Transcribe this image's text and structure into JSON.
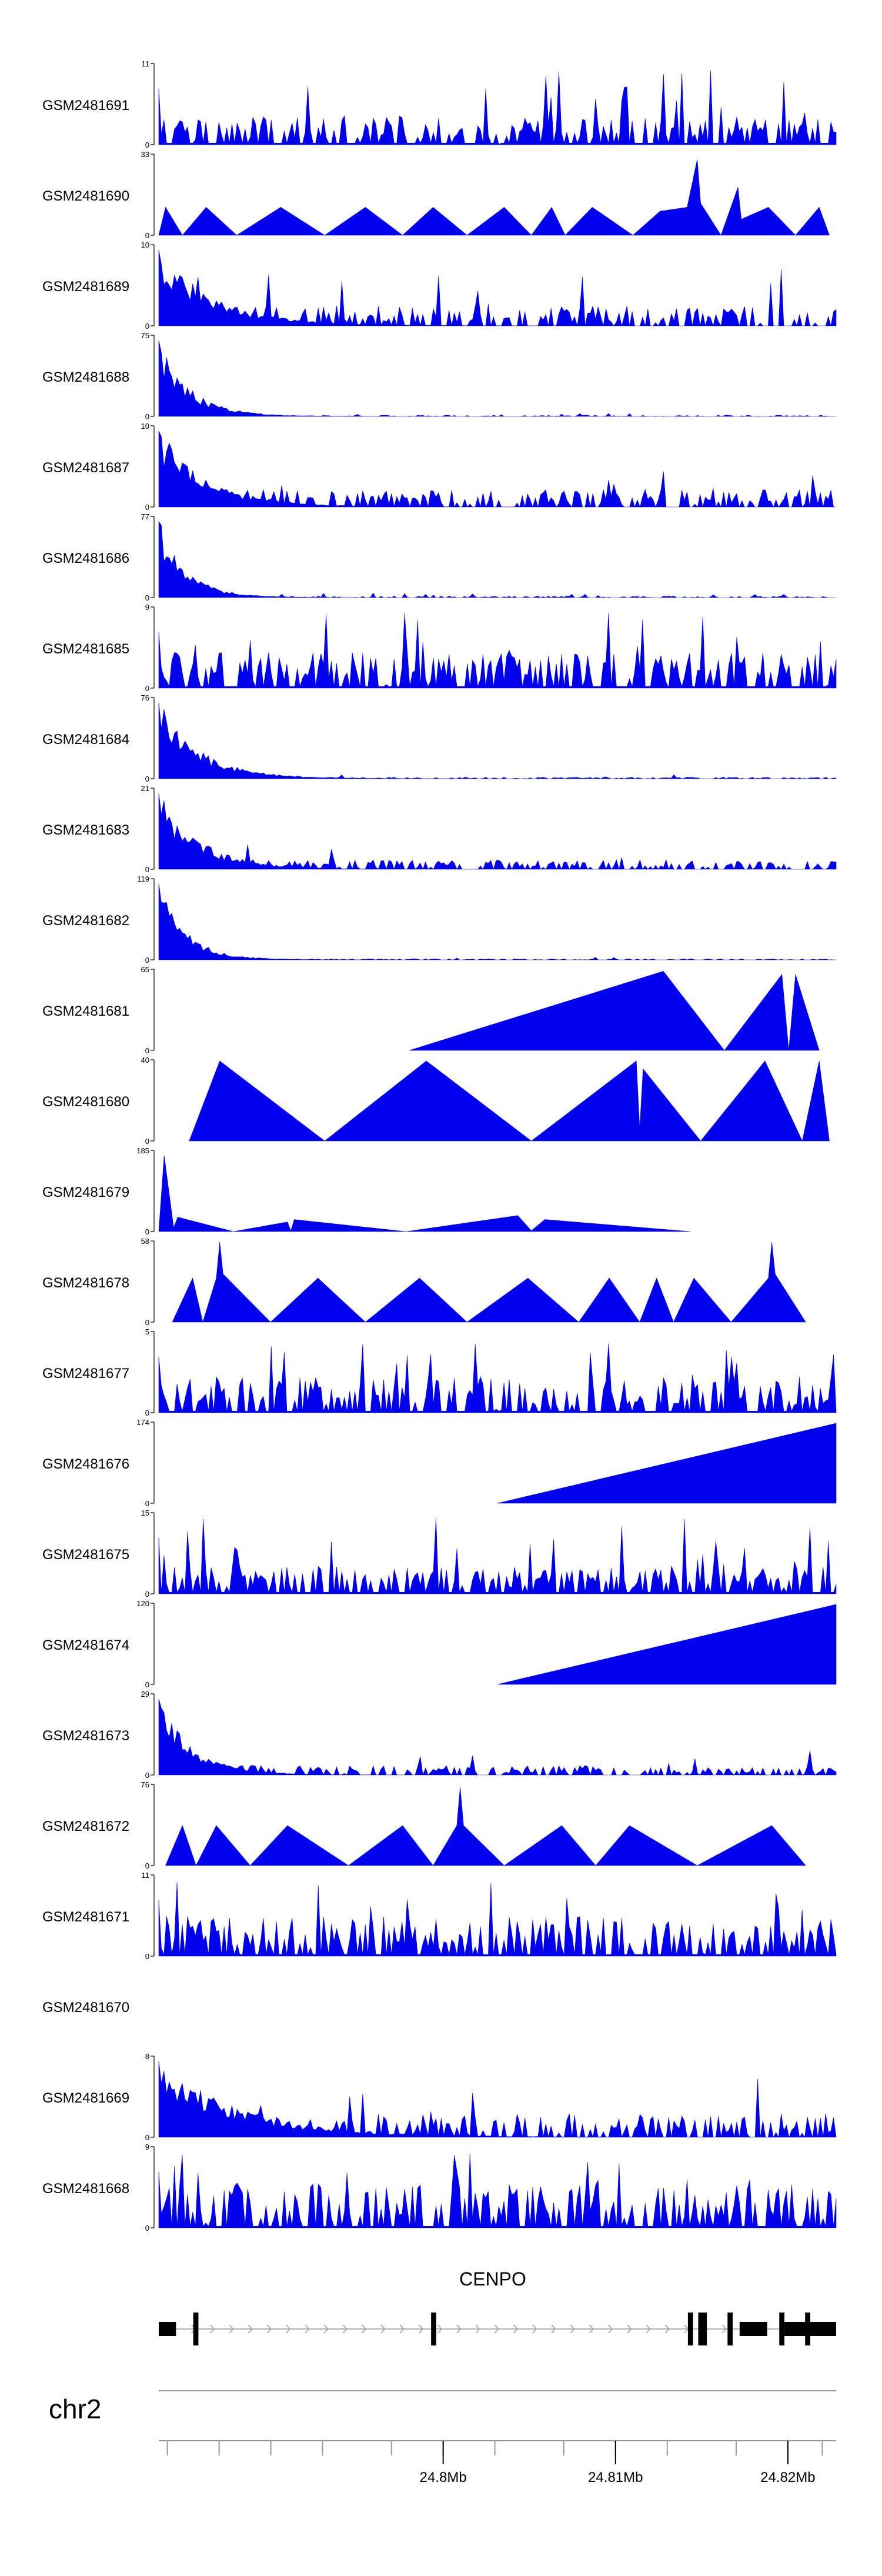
{
  "chart_data": {
    "type": "area",
    "chromosome": "chr2",
    "gene": {
      "name": "CENPO",
      "start": 24.7835,
      "end": 24.8228,
      "strand": "+",
      "exons": [
        [
          24.7835,
          24.7845
        ],
        [
          24.7855,
          24.7858
        ],
        [
          24.7993,
          24.7996
        ],
        [
          24.8142,
          24.8145
        ],
        [
          24.8148,
          24.8153
        ],
        [
          24.8165,
          24.8168
        ],
        [
          24.8172,
          24.8188
        ],
        [
          24.8195,
          24.8198
        ],
        [
          24.821,
          24.8213
        ],
        [
          24.8198,
          24.8228
        ]
      ]
    },
    "x_axis": {
      "range": [
        24.7835,
        24.8228
      ],
      "ticks": [
        24.8,
        24.81,
        24.82
      ],
      "tick_labels": [
        "24.8Mb",
        "24.81Mb",
        "24.82Mb"
      ],
      "minor_ticks": [
        24.784,
        24.787,
        24.79,
        24.793,
        24.797,
        24.8,
        24.803,
        24.807,
        24.81,
        24.813,
        24.817,
        24.82,
        24.822
      ]
    },
    "tracks": [
      {
        "name": "GSM2481691",
        "ymax": 11,
        "ytick": "11",
        "pattern": "noise",
        "seed": 11,
        "level": 0.35
      },
      {
        "name": "GSM2481690",
        "ymax": 33,
        "ytick": "33",
        "pattern": "polyline",
        "points": [
          [
            0.0,
            0
          ],
          [
            0.01,
            0.35
          ],
          [
            0.035,
            0
          ],
          [
            0.07,
            0.35
          ],
          [
            0.115,
            0
          ],
          [
            0.18,
            0.35
          ],
          [
            0.245,
            0
          ],
          [
            0.305,
            0.35
          ],
          [
            0.36,
            0
          ],
          [
            0.405,
            0.35
          ],
          [
            0.455,
            0
          ],
          [
            0.51,
            0.35
          ],
          [
            0.55,
            0
          ],
          [
            0.58,
            0.35
          ],
          [
            0.6,
            0
          ],
          [
            0.64,
            0.35
          ],
          [
            0.7,
            0
          ],
          [
            0.74,
            0.3
          ],
          [
            0.78,
            0.35
          ],
          [
            0.795,
            0.95
          ],
          [
            0.8,
            0.4
          ],
          [
            0.83,
            0
          ],
          [
            0.855,
            0.6
          ],
          [
            0.86,
            0.2
          ],
          [
            0.9,
            0.35
          ],
          [
            0.94,
            0
          ],
          [
            0.975,
            0.35
          ],
          [
            0.99,
            0
          ]
        ]
      },
      {
        "name": "GSM2481689",
        "ymax": 10,
        "ytick": "10",
        "pattern": "decay",
        "seed": 89,
        "decay": 0.08,
        "level": 0.25
      },
      {
        "name": "GSM2481688",
        "ymax": 75,
        "ytick": "75",
        "pattern": "decay",
        "seed": 88,
        "decay": 0.045,
        "level": 0.015
      },
      {
        "name": "GSM2481687",
        "ymax": 10,
        "ytick": "10",
        "pattern": "decay",
        "seed": 87,
        "decay": 0.07,
        "level": 0.22
      },
      {
        "name": "GSM2481686",
        "ymax": 77,
        "ytick": "77",
        "pattern": "decay",
        "seed": 86,
        "decay": 0.04,
        "level": 0.02
      },
      {
        "name": "GSM2481685",
        "ymax": 9,
        "ytick": "9",
        "pattern": "noise",
        "seed": 85,
        "level": 0.45
      },
      {
        "name": "GSM2481684",
        "ymax": 76,
        "ytick": "76",
        "pattern": "decay",
        "seed": 84,
        "decay": 0.06,
        "level": 0.02
      },
      {
        "name": "GSM2481683",
        "ymax": 21,
        "ytick": "21",
        "pattern": "decay",
        "seed": 83,
        "decay": 0.06,
        "level": 0.12
      },
      {
        "name": "GSM2481682",
        "ymax": 119,
        "ytick": "119",
        "pattern": "decay",
        "seed": 82,
        "decay": 0.04,
        "level": 0.012
      },
      {
        "name": "GSM2481681",
        "ymax": 65,
        "ytick": "65",
        "pattern": "polyline",
        "points": [
          [
            0.37,
            0
          ],
          [
            0.745,
            0.99
          ],
          [
            0.835,
            0
          ],
          [
            0.92,
            0.95
          ],
          [
            0.93,
            0
          ],
          [
            0.94,
            0.95
          ],
          [
            0.975,
            0
          ]
        ]
      },
      {
        "name": "GSM2481680",
        "ymax": 40,
        "ytick": "40",
        "pattern": "polyline",
        "points": [
          [
            0.045,
            0
          ],
          [
            0.09,
            1.0
          ],
          [
            0.245,
            0
          ],
          [
            0.395,
            1.0
          ],
          [
            0.55,
            0
          ],
          [
            0.705,
            1.0
          ],
          [
            0.71,
            0.15
          ],
          [
            0.715,
            0.9
          ],
          [
            0.8,
            0
          ],
          [
            0.895,
            1.0
          ],
          [
            0.95,
            0
          ],
          [
            0.975,
            1.0
          ],
          [
            0.99,
            0
          ]
        ]
      },
      {
        "name": "GSM2481679",
        "ymax": 185,
        "ytick": "185",
        "pattern": "polyline",
        "points": [
          [
            0.0,
            0
          ],
          [
            0.008,
            0.95
          ],
          [
            0.022,
            0.05
          ],
          [
            0.028,
            0.18
          ],
          [
            0.11,
            0
          ],
          [
            0.19,
            0.12
          ],
          [
            0.195,
            0.01
          ],
          [
            0.2,
            0.15
          ],
          [
            0.365,
            0
          ],
          [
            0.53,
            0.2
          ],
          [
            0.55,
            0.01
          ],
          [
            0.57,
            0.15
          ],
          [
            0.785,
            0
          ]
        ]
      },
      {
        "name": "GSM2481678",
        "ymax": 58,
        "ytick": "58",
        "pattern": "polyline",
        "points": [
          [
            0.02,
            0
          ],
          [
            0.05,
            0.55
          ],
          [
            0.065,
            0
          ],
          [
            0.085,
            0.55
          ],
          [
            0.09,
            1.0
          ],
          [
            0.095,
            0.6
          ],
          [
            0.165,
            0
          ],
          [
            0.235,
            0.55
          ],
          [
            0.305,
            0
          ],
          [
            0.385,
            0.55
          ],
          [
            0.455,
            0
          ],
          [
            0.545,
            0.55
          ],
          [
            0.62,
            0
          ],
          [
            0.665,
            0.55
          ],
          [
            0.71,
            0
          ],
          [
            0.735,
            0.55
          ],
          [
            0.76,
            0
          ],
          [
            0.79,
            0.55
          ],
          [
            0.845,
            0
          ],
          [
            0.9,
            0.55
          ],
          [
            0.905,
            1.0
          ],
          [
            0.91,
            0.6
          ],
          [
            0.955,
            0
          ]
        ]
      },
      {
        "name": "GSM2481677",
        "ymax": 5,
        "ytick": "5",
        "pattern": "noise",
        "seed": 77,
        "level": 0.45
      },
      {
        "name": "GSM2481676",
        "ymax": 174,
        "ytick": "174",
        "pattern": "polyline",
        "points": [
          [
            0.5,
            0
          ],
          [
            1.0,
            1.0
          ],
          [
            1.0,
            0
          ]
        ]
      },
      {
        "name": "GSM2481675",
        "ymax": 15,
        "ytick": "15",
        "pattern": "noise",
        "seed": 75,
        "level": 0.35
      },
      {
        "name": "GSM2481674",
        "ymax": 120,
        "ytick": "120",
        "pattern": "polyline",
        "points": [
          [
            0.5,
            0
          ],
          [
            1.0,
            1.0
          ],
          [
            1.0,
            0
          ]
        ]
      },
      {
        "name": "GSM2481673",
        "ymax": 29,
        "ytick": "29",
        "pattern": "decay",
        "seed": 73,
        "decay": 0.05,
        "level": 0.12
      },
      {
        "name": "GSM2481672",
        "ymax": 76,
        "ytick": "76",
        "pattern": "polyline",
        "points": [
          [
            0.01,
            0
          ],
          [
            0.035,
            0.5
          ],
          [
            0.055,
            0
          ],
          [
            0.085,
            0.5
          ],
          [
            0.135,
            0
          ],
          [
            0.19,
            0.5
          ],
          [
            0.28,
            0
          ],
          [
            0.36,
            0.5
          ],
          [
            0.405,
            0
          ],
          [
            0.44,
            0.5
          ],
          [
            0.445,
            0.98
          ],
          [
            0.45,
            0.5
          ],
          [
            0.51,
            0
          ],
          [
            0.595,
            0.5
          ],
          [
            0.645,
            0
          ],
          [
            0.695,
            0.5
          ],
          [
            0.795,
            0
          ],
          [
            0.905,
            0.5
          ],
          [
            0.955,
            0
          ]
        ]
      },
      {
        "name": "GSM2481671",
        "ymax": 11,
        "ytick": "11",
        "pattern": "noise",
        "seed": 71,
        "level": 0.5
      },
      {
        "name": "GSM2481670",
        "ymax": null,
        "ytick": "",
        "pattern": "empty"
      },
      {
        "name": "GSM2481669",
        "ymax": 8,
        "ytick": "8",
        "pattern": "decay",
        "seed": 69,
        "decay": 0.12,
        "level": 0.3
      },
      {
        "name": "GSM2481668",
        "ymax": 9,
        "ytick": "9",
        "pattern": "noise",
        "seed": 68,
        "level": 0.55
      }
    ]
  },
  "colors": {
    "signal": "#0000ee",
    "axis": "#000000",
    "gene": "#000000",
    "intron": "#999999"
  }
}
